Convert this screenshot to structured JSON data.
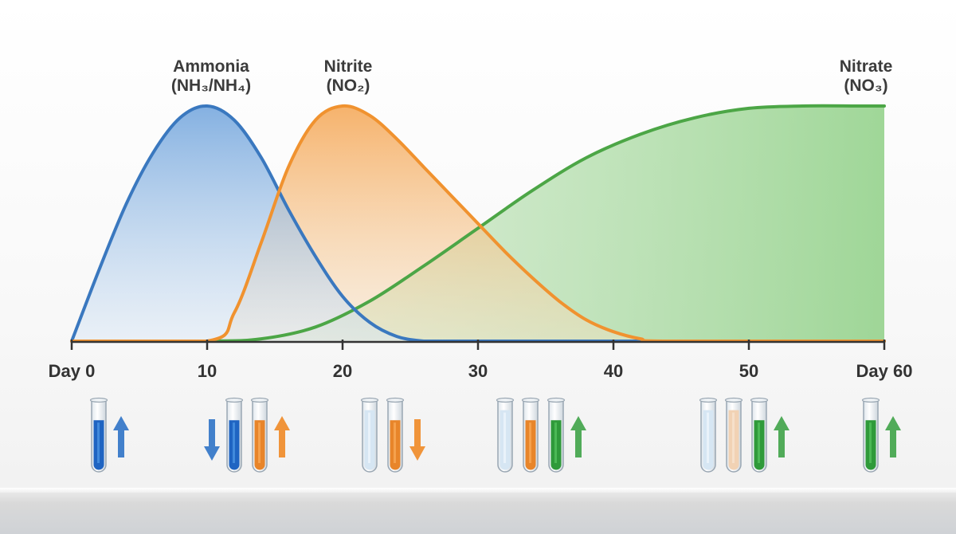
{
  "chart_data": {
    "type": "area",
    "title": "",
    "xlabel": "",
    "ylabel": "",
    "xlim": [
      0,
      60
    ],
    "ylim": [
      0,
      1
    ],
    "x_ticks": [
      "Day 0",
      "10",
      "20",
      "30",
      "40",
      "50",
      "Day 60"
    ],
    "x_tick_values": [
      0,
      10,
      20,
      30,
      40,
      50,
      60
    ],
    "grid": false,
    "series": [
      {
        "name": "Ammonia (NH3/NH4)",
        "label_line1": "Ammonia",
        "label_line2": "(NH₃/NH₄)",
        "color": "#3a78bf",
        "x": [
          0,
          2,
          4,
          6,
          8,
          10,
          12,
          14,
          16,
          18,
          20,
          22,
          24,
          26,
          28,
          60
        ],
        "y": [
          0,
          0.3,
          0.58,
          0.8,
          0.95,
          1.0,
          0.94,
          0.78,
          0.56,
          0.36,
          0.19,
          0.08,
          0.02,
          0,
          0,
          0
        ]
      },
      {
        "name": "Nitrite (NO2)",
        "label_line1": "Nitrite",
        "label_line2": "(NO₂)",
        "color": "#f0922f",
        "x": [
          0,
          10,
          12,
          14,
          16,
          18,
          20,
          22,
          24,
          26,
          28,
          30,
          32,
          34,
          36,
          38,
          40,
          42,
          44,
          60
        ],
        "y": [
          0,
          0,
          0.12,
          0.42,
          0.74,
          0.94,
          1.0,
          0.96,
          0.86,
          0.74,
          0.62,
          0.5,
          0.38,
          0.27,
          0.17,
          0.09,
          0.04,
          0.01,
          0,
          0
        ]
      },
      {
        "name": "Nitrate (NO3)",
        "label_line1": "Nitrate",
        "label_line2": "(NO₃)",
        "color": "#4ca646",
        "x": [
          0,
          10,
          14,
          18,
          22,
          26,
          30,
          34,
          38,
          42,
          46,
          50,
          54,
          58,
          60
        ],
        "y": [
          0,
          0,
          0.01,
          0.06,
          0.17,
          0.32,
          0.48,
          0.64,
          0.78,
          0.88,
          0.95,
          0.99,
          1.0,
          1.0,
          1.0
        ]
      }
    ],
    "test_tube_groups": [
      {
        "day": 2,
        "tubes": [
          "blue"
        ],
        "arrows": [
          {
            "color": "blue",
            "direction": "up",
            "after_tube": 0
          }
        ]
      },
      {
        "day": 12,
        "tubes": [
          "blue",
          "orange"
        ],
        "arrows": [
          {
            "color": "blue",
            "direction": "down",
            "before_tube": 0
          },
          {
            "color": "orange",
            "direction": "up",
            "after_tube": 1
          }
        ]
      },
      {
        "day": 22,
        "tubes": [
          "clear",
          "orange"
        ],
        "arrows": [
          {
            "color": "orange",
            "direction": "down",
            "after_tube": 1
          }
        ]
      },
      {
        "day": 32,
        "tubes": [
          "clear",
          "orange",
          "green"
        ],
        "arrows": [
          {
            "color": "green",
            "direction": "up",
            "after_tube": 2
          }
        ]
      },
      {
        "day": 47,
        "tubes": [
          "clear",
          "pale-orange",
          "green"
        ],
        "arrows": [
          {
            "color": "green",
            "direction": "up",
            "after_tube": 2
          }
        ]
      },
      {
        "day": 59,
        "tubes": [
          "green"
        ],
        "arrows": [
          {
            "color": "green",
            "direction": "up",
            "after_tube": 0
          }
        ]
      }
    ]
  }
}
